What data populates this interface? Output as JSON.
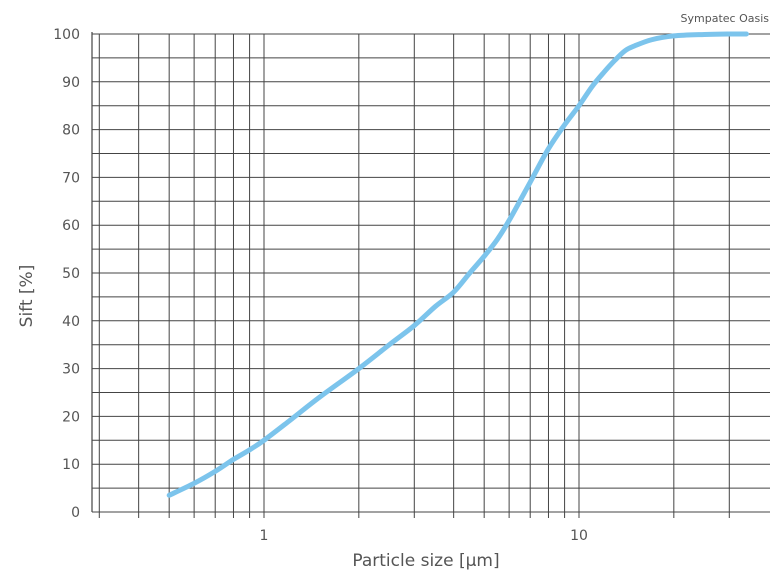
{
  "chart_data": {
    "type": "line",
    "title": "",
    "annotation": "Sympatec Oasis",
    "xlabel": "Particle size [µm]",
    "ylabel": "Sift [%]",
    "x_scale": "log",
    "xlim": [
      0.3,
      35
    ],
    "ylim": [
      0,
      100
    ],
    "x_ticks": [
      {
        "value": 1,
        "label": "1"
      },
      {
        "value": 10,
        "label": "10"
      }
    ],
    "y_ticks": [
      {
        "value": 0,
        "label": "0"
      },
      {
        "value": 10,
        "label": "10"
      },
      {
        "value": 20,
        "label": "20"
      },
      {
        "value": 30,
        "label": "30"
      },
      {
        "value": 40,
        "label": "40"
      },
      {
        "value": 50,
        "label": "50"
      },
      {
        "value": 60,
        "label": "60"
      },
      {
        "value": 70,
        "label": "70"
      },
      {
        "value": 80,
        "label": "80"
      },
      {
        "value": 90,
        "label": "90"
      },
      {
        "value": 100,
        "label": "100"
      }
    ],
    "grid": true,
    "colors": {
      "series": "#7cc4ec",
      "grid": "#444444",
      "text": "#555555"
    },
    "series": [
      {
        "x": [
          0.5,
          0.6,
          0.7,
          0.8,
          0.9,
          1.0,
          1.2,
          1.5,
          2.0,
          2.5,
          3.0,
          3.5,
          4.0,
          4.5,
          5.0,
          5.5,
          6.0,
          7.0,
          8.0,
          9.0,
          10.0,
          11.0,
          12.0,
          13.0,
          14.0,
          15.0,
          17.0,
          20.0,
          25.0,
          30.0,
          34.0
        ],
        "y": [
          3.5,
          6,
          8.5,
          11,
          13,
          15,
          19,
          24,
          30,
          35,
          39,
          43,
          46,
          50,
          53.5,
          57,
          61,
          69,
          76,
          81,
          85,
          89,
          92,
          94.5,
          96.5,
          97.5,
          98.8,
          99.6,
          99.9,
          100,
          100
        ]
      }
    ]
  }
}
